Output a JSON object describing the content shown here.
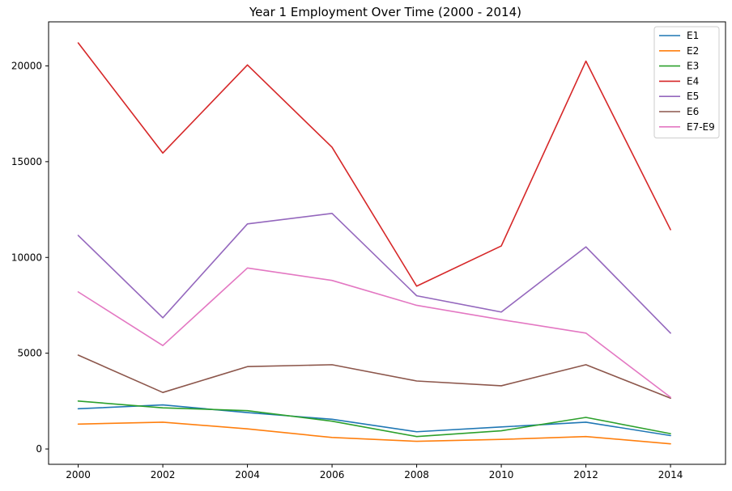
{
  "chart_data": {
    "type": "line",
    "title": "Year 1 Employment Over Time (2000 - 2014)",
    "xlabel": "",
    "ylabel": "",
    "x": [
      2000,
      2002,
      2004,
      2006,
      2008,
      2010,
      2012,
      2014
    ],
    "x_ticks": [
      "2000",
      "2002",
      "2004",
      "2006",
      "2008",
      "2010",
      "2012",
      "2014"
    ],
    "y_ticks": [
      "0",
      "5000",
      "10000",
      "15000",
      "20000"
    ],
    "y_tick_values": [
      0,
      5000,
      10000,
      15000,
      20000
    ],
    "xlim": [
      1999.3,
      2015.3
    ],
    "ylim": [
      -800,
      22300
    ],
    "grid": false,
    "legend_position": "top-right",
    "series": [
      {
        "name": "E1",
        "color": "#1f77b4",
        "values": [
          2100,
          2300,
          1900,
          1550,
          900,
          1150,
          1400,
          700
        ]
      },
      {
        "name": "E2",
        "color": "#ff7f0e",
        "values": [
          1300,
          1400,
          1050,
          600,
          400,
          500,
          650,
          270
        ]
      },
      {
        "name": "E3",
        "color": "#2ca02c",
        "values": [
          2500,
          2150,
          2000,
          1450,
          650,
          950,
          1650,
          800
        ]
      },
      {
        "name": "E4",
        "color": "#d62728",
        "values": [
          21200,
          15450,
          20050,
          15750,
          8500,
          10600,
          20250,
          11450
        ]
      },
      {
        "name": "E5",
        "color": "#9467bd",
        "values": [
          11150,
          6850,
          11750,
          12300,
          8000,
          7150,
          10550,
          6050
        ]
      },
      {
        "name": "E6",
        "color": "#8c564b",
        "values": [
          4900,
          2950,
          4300,
          4400,
          3550,
          3300,
          4400,
          2650
        ]
      },
      {
        "name": "E7-E9",
        "color": "#e377c2",
        "values": [
          8200,
          5400,
          9450,
          8800,
          7500,
          6750,
          6050,
          2700
        ]
      }
    ]
  }
}
